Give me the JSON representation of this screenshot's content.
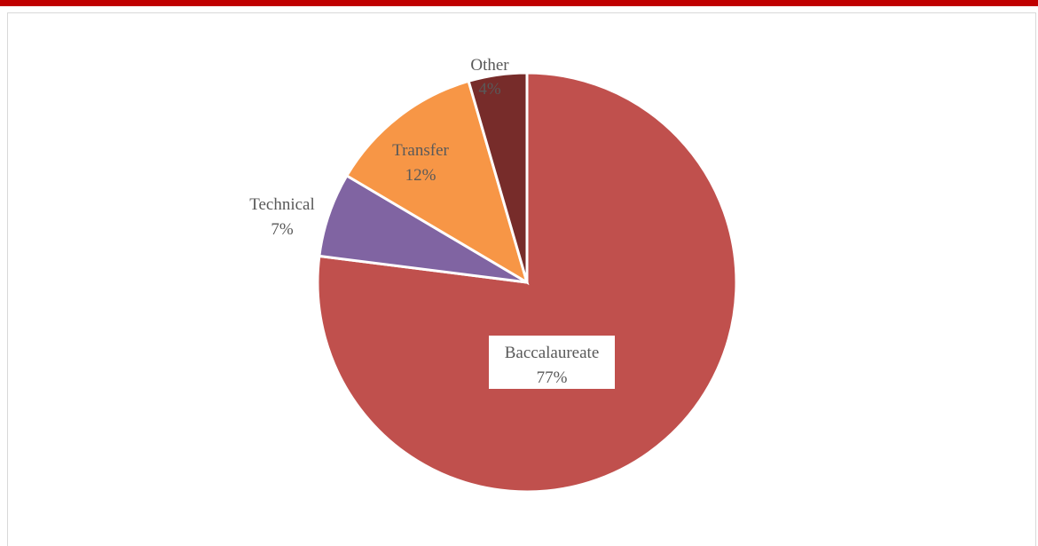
{
  "chart_data": {
    "type": "pie",
    "slices": [
      {
        "label": "Baccalaureate",
        "pct_label": "77%",
        "value": 77,
        "color": "#c0504d"
      },
      {
        "label": "Technical",
        "pct_label": "7%",
        "value": 6.5,
        "color": "#8064a2"
      },
      {
        "label": "Transfer",
        "pct_label": "12%",
        "value": 12,
        "color": "#f79646"
      },
      {
        "label": "Other",
        "pct_label": "4%",
        "value": 4.5,
        "color": "#772c2a"
      }
    ],
    "legend": "none",
    "data_labels": "category-and-percent"
  }
}
